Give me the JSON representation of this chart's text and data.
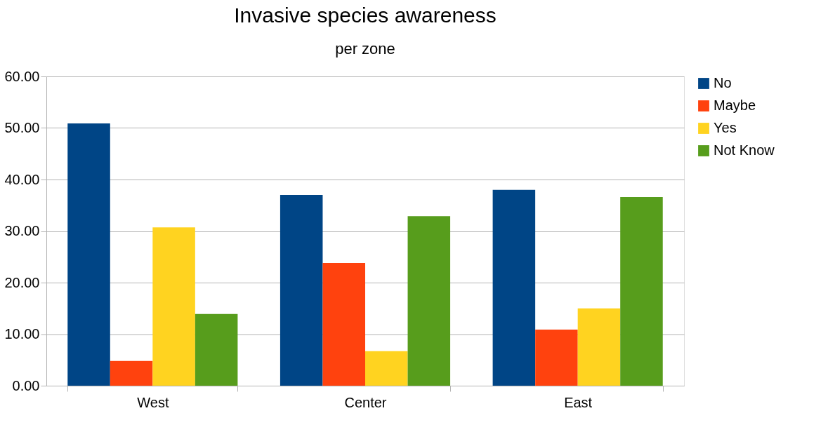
{
  "chart_data": {
    "type": "bar",
    "title": "Invasive species awareness",
    "subtitle": "per zone",
    "categories": [
      "West",
      "Center",
      "East"
    ],
    "series": [
      {
        "name": "No",
        "color": "#004586",
        "values": [
          50.9,
          37.0,
          38.0
        ]
      },
      {
        "name": "Maybe",
        "color": "#ff420e",
        "values": [
          4.8,
          23.8,
          10.9
        ]
      },
      {
        "name": "Yes",
        "color": "#ffd320",
        "values": [
          30.7,
          6.7,
          15.0
        ]
      },
      {
        "name": "Not Know",
        "color": "#579d1c",
        "values": [
          13.9,
          32.9,
          36.6
        ]
      }
    ],
    "ylim": [
      0,
      60
    ],
    "yticks": [
      {
        "value": 0,
        "label": "0.00"
      },
      {
        "value": 10,
        "label": "10.00"
      },
      {
        "value": 20,
        "label": "20.00"
      },
      {
        "value": 30,
        "label": "30.00"
      },
      {
        "value": 40,
        "label": "40.00"
      },
      {
        "value": 50,
        "label": "50.00"
      },
      {
        "value": 60,
        "label": "60.00"
      }
    ],
    "grid": "y",
    "legend": "right"
  }
}
